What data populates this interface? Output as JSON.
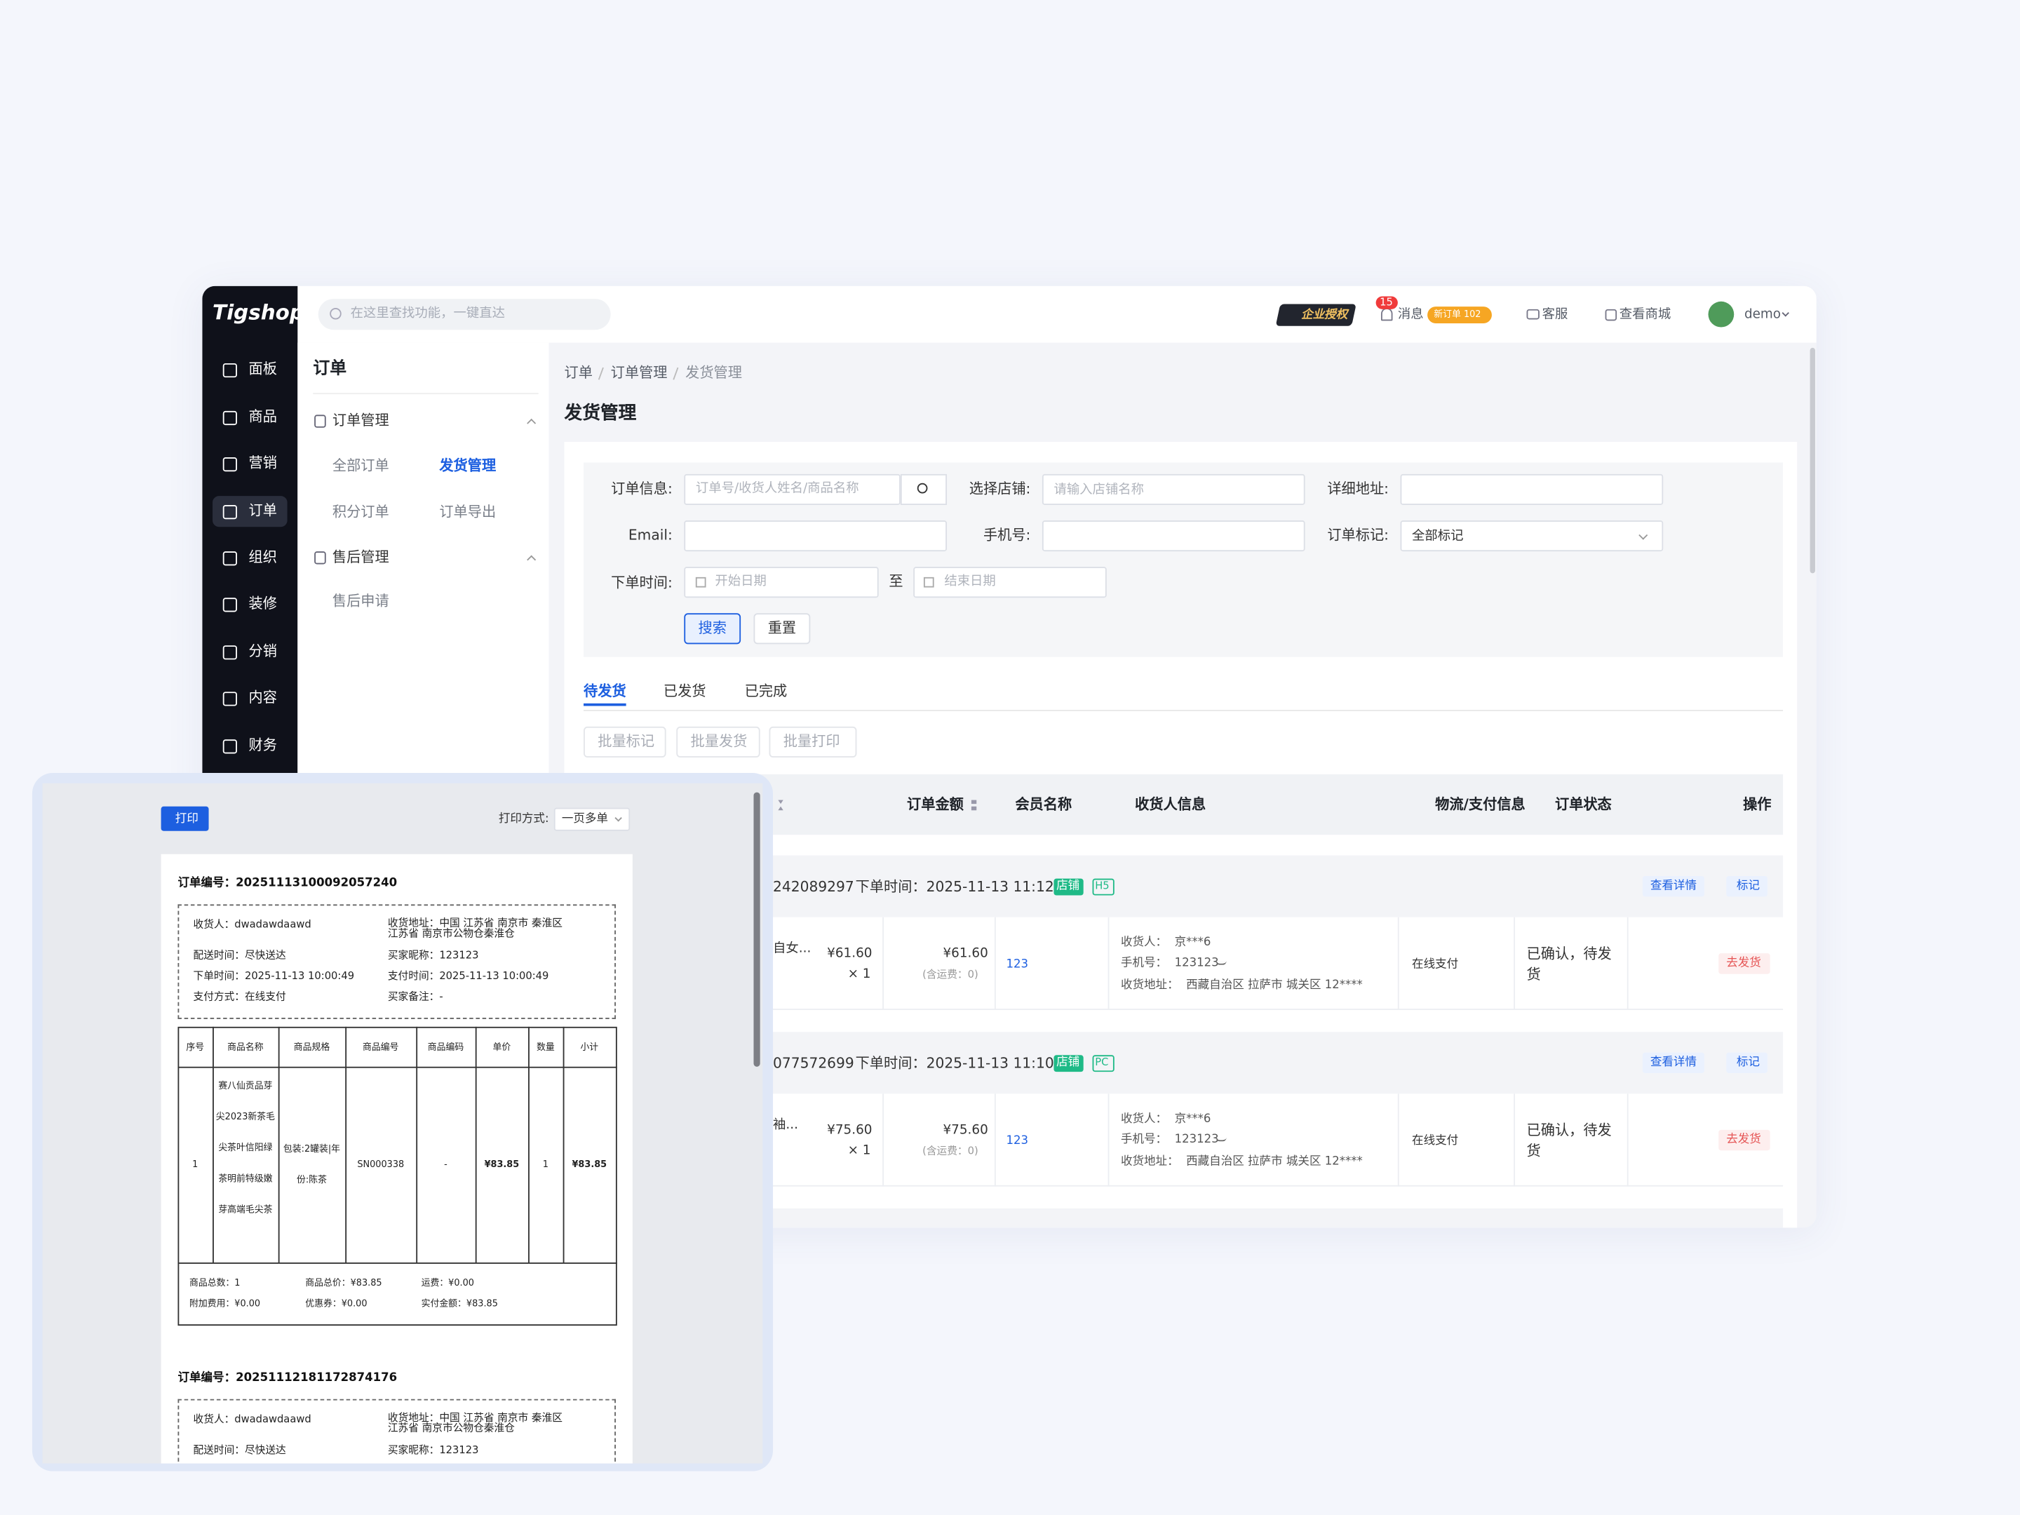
{
  "topbar": {
    "logo": "Tigshop",
    "search_placeholder": "在这里查找功能，一键直达",
    "license": "企业授权",
    "notice_count": "15",
    "messages": "消息",
    "new_orders": "新订单 102",
    "service": "客服",
    "view_mall": "查看商城",
    "user": "demo"
  },
  "sidebar": [
    "面板",
    "商品",
    "营销",
    "订单",
    "组织",
    "装修",
    "分销",
    "内容",
    "财务"
  ],
  "submenu": {
    "title": "订单",
    "groups": [
      {
        "name": "订单管理",
        "items": [
          "全部订单",
          "发货管理",
          "积分订单",
          "订单导出"
        ]
      },
      {
        "name": "售后管理",
        "items": [
          "售后申请"
        ]
      }
    ]
  },
  "breadcrumb": [
    "订单",
    "订单管理",
    "发货管理"
  ],
  "page_title": "发货管理",
  "filters": {
    "order_info": "订单信息:",
    "order_info_placeholder": "订单号/收货人姓名/商品名称",
    "shop": "选择店铺:",
    "shop_placeholder": "请输入店铺名称",
    "address": "详细地址:",
    "email": "Email:",
    "phone": "手机号:",
    "mark": "订单标记:",
    "mark_value": "全部标记",
    "time": "下单时间:",
    "start": "开始日期",
    "to": "至",
    "end": "结束日期",
    "search": "搜索",
    "reset": "重置"
  },
  "tabs": [
    "待发货",
    "已发货",
    "已完成"
  ],
  "batch_buttons": [
    "批量标记",
    "批量发货",
    "批量打印"
  ],
  "table": {
    "headers": [
      "订单金额",
      "会员名称",
      "收货人信息",
      "物流/支付信息",
      "订单状态",
      "操作"
    ],
    "orders": [
      {
        "order_no": "242089297",
        "time": "下单时间：2025-11-13 11:12:10",
        "shop_tag": "店铺",
        "platform": "H5",
        "view": "查看详情",
        "mark": "标记",
        "product": "自女...",
        "price": "¥61.60",
        "qty": "× 1",
        "amount": "¥61.60",
        "freight": "(含运费：0)",
        "member": "123",
        "receiver": "收货人：  京***6",
        "phone": "手机号：  123123",
        "address": "收货地址：  西藏自治区 拉萨市 城关区 12****",
        "payment": "在线支付",
        "status": "已确认，待发货",
        "action": "去发货"
      },
      {
        "order_no": "077572699",
        "time": "下单时间：2025-11-13 11:10:35",
        "shop_tag": "店铺",
        "platform": "PC",
        "view": "查看详情",
        "mark": "标记",
        "product": "袖...",
        "price": "¥75.60",
        "qty": "× 1",
        "amount": "¥75.60",
        "freight": "(含运费：0)",
        "member": "123",
        "receiver": "收货人：  京***6",
        "phone": "手机号：  123123",
        "address": "收货地址：  西藏自治区 拉萨市 城关区 12****",
        "payment": "在线支付",
        "status": "已确认，待发货",
        "action": "去发货"
      }
    ]
  },
  "print_panel": {
    "print": "打印",
    "mode_label": "打印方式:",
    "mode": "一页多单",
    "orders": [
      {
        "order_no": "订单编号：20251113100092057240",
        "receiver": "收货人：dwadawdaawd",
        "address": "收货地址：中国 江苏省 南京市 秦淮区 江苏省 南京市公物仓秦淮仓",
        "delivery": "配送时间：尽快送达",
        "nickname": "买家昵称：123123",
        "order_time": "下单时间：2025-11-13 10:00:49",
        "pay_time": "支付时间：2025-11-13 10:00:49",
        "pay_method": "支付方式：在线支付",
        "remark": "买家备注：-",
        "table_headers": [
          "序号",
          "商品名称",
          "商品规格",
          "商品编号",
          "商品编码",
          "单价",
          "数量",
          "小计"
        ],
        "row": [
          "1",
          "赛八仙贡品芽尖2023新茶毛尖茶叶信阳绿茶明前特级嫩芽高端毛尖茶",
          "包装:2罐装|年份:陈茶",
          "SN000338",
          "-",
          "¥83.85",
          "1",
          "¥83.85"
        ],
        "totals": [
          "商品总数：1",
          "商品总价：¥83.85",
          "运费：¥0.00",
          "附加费用：¥0.00",
          "优惠券：¥0.00",
          "实付金额：¥83.85"
        ]
      },
      {
        "order_no": "订单编号：20251112181172874176",
        "receiver": "收货人：dwadawdaawd",
        "address": "收货地址：中国 江苏省 南京市 秦淮区 江苏省 南京市公物仓秦淮仓",
        "delivery": "配送时间：尽快送达",
        "nickname": "买家昵称：123123"
      }
    ]
  }
}
